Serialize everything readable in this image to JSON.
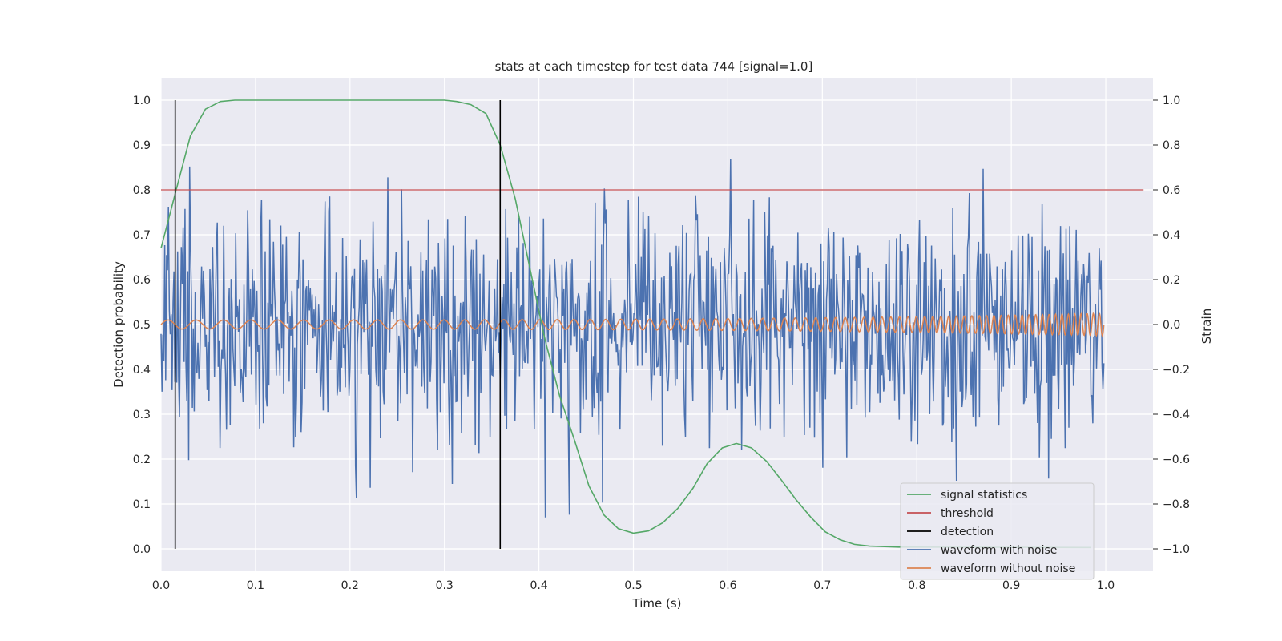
{
  "chart_data": {
    "type": "line",
    "title": "stats at each timestep for test data 744 [signal=1.0]",
    "xlabel": "Time (s)",
    "ylabel_left": "Detection probability",
    "ylabel_right": "Strain",
    "xlim": [
      0.0,
      1.05
    ],
    "ylim_left": [
      -0.05,
      1.05
    ],
    "ylim_right": [
      -1.1,
      1.1
    ],
    "x_ticks": [
      0.0,
      0.1,
      0.2,
      0.3,
      0.4,
      0.5,
      0.6,
      0.7,
      0.8,
      0.9,
      1.0
    ],
    "x_tick_labels": [
      "0.0",
      "0.1",
      "0.2",
      "0.3",
      "0.4",
      "0.5",
      "0.6",
      "0.7",
      "0.8",
      "0.9",
      "1.0"
    ],
    "y_left_ticks": [
      0.0,
      0.1,
      0.2,
      0.3,
      0.4,
      0.5,
      0.6,
      0.7,
      0.8,
      0.9,
      1.0
    ],
    "y_left_tick_labels": [
      "0.0",
      "0.1",
      "0.2",
      "0.3",
      "0.4",
      "0.5",
      "0.6",
      "0.7",
      "0.8",
      "0.9",
      "1.0"
    ],
    "y_right_ticks": [
      -1.0,
      -0.8,
      -0.6,
      -0.4,
      -0.2,
      0.0,
      0.2,
      0.4,
      0.6,
      0.8,
      1.0
    ],
    "y_right_tick_labels": [
      "−1.0",
      "−0.8",
      "−0.6",
      "−0.4",
      "−0.2",
      "0.0",
      "0.2",
      "0.4",
      "0.6",
      "0.8",
      "1.0"
    ],
    "grid": true,
    "legend_position": "lower-right",
    "colors": {
      "axes_bg": "#EAEAF2",
      "grid": "#FFFFFF",
      "signal_statistics": "#55A868",
      "threshold": "#C44E52",
      "detection": "#000000",
      "waveform_with_noise": "#4C72B0",
      "waveform_without_noise": "#DD8452"
    },
    "series": [
      {
        "name": "signal statistics",
        "axis": "left",
        "x": [
          0.0,
          0.016,
          0.031,
          0.047,
          0.063,
          0.078,
          0.094,
          0.11,
          0.125,
          0.3,
          0.313,
          0.328,
          0.344,
          0.359,
          0.375,
          0.391,
          0.406,
          0.422,
          0.438,
          0.453,
          0.469,
          0.484,
          0.5,
          0.516,
          0.531,
          0.547,
          0.563,
          0.578,
          0.594,
          0.609,
          0.625,
          0.641,
          0.656,
          0.672,
          0.688,
          0.703,
          0.719,
          0.734,
          0.75,
          0.766,
          0.781,
          0.984
        ],
        "y": [
          0.67,
          0.8,
          0.92,
          0.98,
          0.997,
          1.0,
          1.0,
          1.0,
          1.0,
          1.0,
          0.997,
          0.99,
          0.97,
          0.9,
          0.78,
          0.62,
          0.47,
          0.34,
          0.24,
          0.14,
          0.075,
          0.045,
          0.035,
          0.04,
          0.058,
          0.09,
          0.135,
          0.19,
          0.225,
          0.235,
          0.225,
          0.195,
          0.155,
          0.11,
          0.07,
          0.038,
          0.02,
          0.01,
          0.006,
          0.005,
          0.004,
          0.003
        ]
      },
      {
        "name": "threshold",
        "axis": "left",
        "x": [
          0.0,
          1.04
        ],
        "y": [
          0.8,
          0.8
        ]
      },
      {
        "name": "detection",
        "axis": "left",
        "x_positions": [
          0.015,
          0.359
        ],
        "y_range": [
          0.0,
          1.0
        ]
      },
      {
        "name": "waveform with noise",
        "axis": "right",
        "x_range": [
          0.0,
          0.998
        ],
        "n_points": 1024,
        "approx_std": 0.27,
        "approx_range": [
          -1.0,
          1.0
        ]
      },
      {
        "name": "waveform without noise",
        "axis": "right",
        "x_range": [
          0.0,
          0.998
        ],
        "amplitude_start": 0.02,
        "amplitude_end": 0.05,
        "approx_cycles": 75
      }
    ]
  }
}
